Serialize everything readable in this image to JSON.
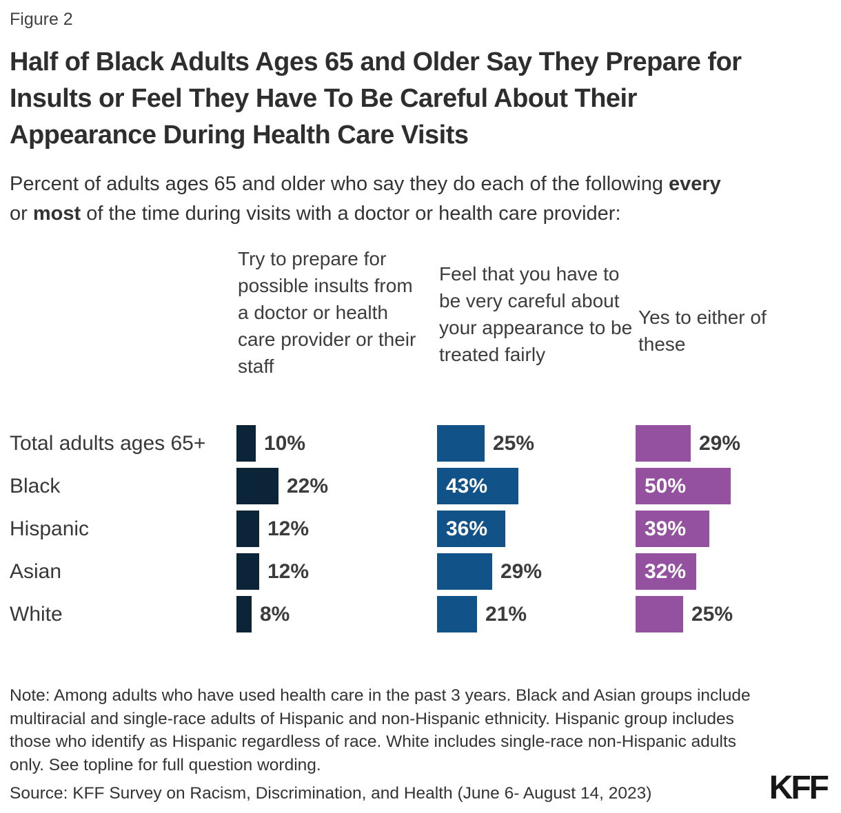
{
  "figure_label": "Figure 2",
  "title_lines": [
    "Half of Black Adults Ages 65 and Older Say They Prepare for",
    "Insults or Feel They Have To Be Careful About Their",
    "Appearance During Health Care Visits"
  ],
  "subtitle": {
    "line1_text": "Percent of adults ages 65 and older who say they do each of the following ",
    "line1_bold": "every",
    "line2_pre": "or ",
    "line2_bold": "most",
    "line2_post": " of the time during visits with a doctor or health care provider:"
  },
  "chart_data": {
    "type": "bar",
    "orientation": "horizontal",
    "value_suffix": "%",
    "categories": [
      "Total adults ages 65+",
      "Black",
      "Hispanic",
      "Asian",
      "White"
    ],
    "series": [
      {
        "name": "Try to prepare for possible insults from a doctor or health care provider or their staff",
        "color": "#0b2438",
        "values": [
          10,
          22,
          12,
          12,
          8
        ]
      },
      {
        "name": "Feel that you have to be very careful about your appearance to be treated fairly",
        "color": "#115389",
        "values": [
          25,
          43,
          36,
          29,
          21
        ]
      },
      {
        "name": "Yes to either of these",
        "color": "#94519f",
        "values": [
          29,
          50,
          39,
          32,
          25
        ]
      }
    ],
    "xlim": [
      0,
      100
    ],
    "grid": false,
    "legend": "column-headers",
    "value_labels": "end-of-bar"
  },
  "note": "Note: Among adults who have used health care in the past 3 years. Black and Asian groups include multiracial and single-race adults of Hispanic and non-Hispanic ethnicity. Hispanic group includes those who identify as Hispanic regardless of race. White includes single-race non-Hispanic adults only. See topline for full question wording.",
  "source": "Source: KFF Survey on Racism, Discrimination, and Health (June 6- August 14, 2023)",
  "logo_text": "KFF",
  "colors": {
    "navy": "#0b2438",
    "blue": "#115389",
    "purple": "#94519f",
    "text": "#333333"
  }
}
